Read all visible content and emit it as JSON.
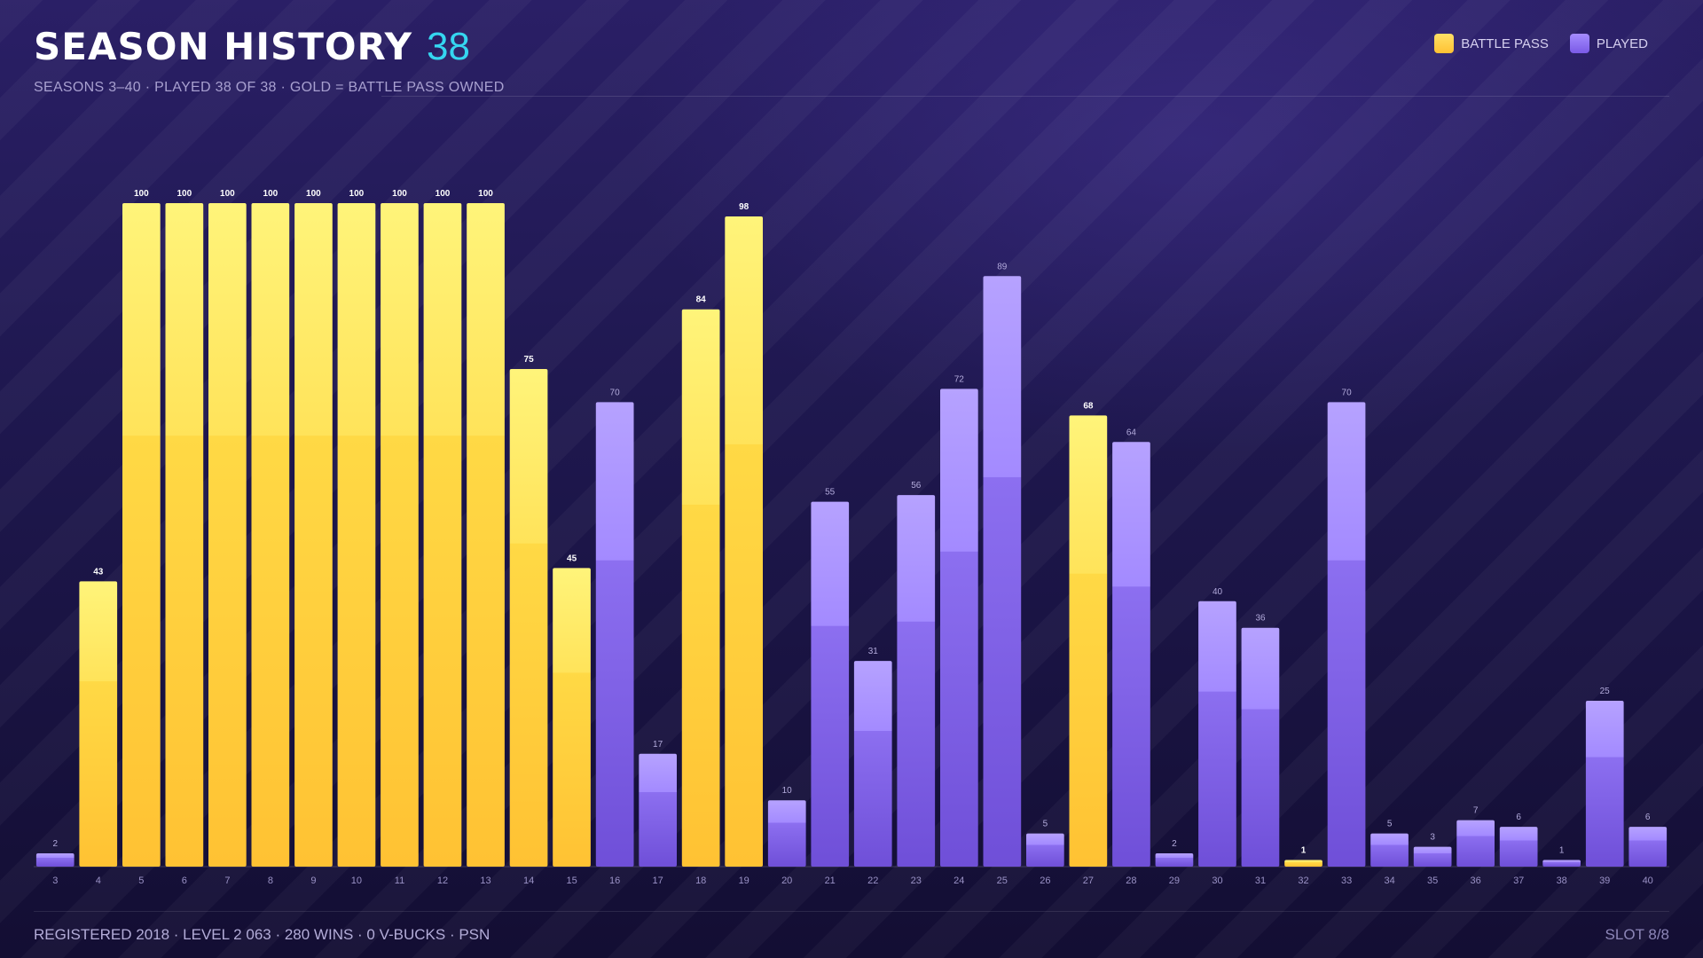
{
  "header": {
    "title": "SEASON HISTORY",
    "count": "38",
    "subtitle": "SEASONS 3–40 · PLAYED 38 OF 38 · GOLD = BATTLE PASS OWNED"
  },
  "legend": [
    {
      "label": "BATTLE PASS",
      "color": "#ffc93c"
    },
    {
      "label": "PLAYED",
      "color": "#8e6ff0"
    }
  ],
  "footer": {
    "left": "REGISTERED 2018 · LEVEL 2 063 · 280 WINS · 0 V-BUCKS · PSN",
    "right": "SLOT 8/8"
  },
  "colors": {
    "gold_top": "#fff47a",
    "gold_bottom": "#ffc233",
    "purple_top": "#b6a2ff",
    "purple_bottom": "#6f4fd8"
  },
  "chart_data": {
    "type": "bar",
    "title": "SEASON HISTORY",
    "categories": [
      "3",
      "4",
      "5",
      "6",
      "7",
      "8",
      "9",
      "10",
      "11",
      "12",
      "13",
      "14",
      "15",
      "16",
      "17",
      "18",
      "19",
      "20",
      "21",
      "22",
      "23",
      "24",
      "25",
      "26",
      "27",
      "28",
      "29",
      "30",
      "31",
      "32",
      "33",
      "34",
      "35",
      "36",
      "37",
      "38",
      "39",
      "40"
    ],
    "values": [
      2,
      43,
      100,
      100,
      100,
      100,
      100,
      100,
      100,
      100,
      100,
      75,
      45,
      70,
      17,
      84,
      98,
      10,
      55,
      31,
      56,
      72,
      89,
      5,
      68,
      64,
      2,
      40,
      36,
      1,
      70,
      5,
      3,
      7,
      6,
      1,
      25,
      6
    ],
    "battle_pass": [
      false,
      true,
      true,
      true,
      true,
      true,
      true,
      true,
      true,
      true,
      true,
      true,
      true,
      false,
      false,
      true,
      true,
      false,
      false,
      false,
      false,
      false,
      false,
      false,
      true,
      false,
      false,
      false,
      false,
      true,
      false,
      false,
      false,
      false,
      false,
      false,
      false,
      false
    ],
    "series": [
      {
        "name": "BATTLE PASS",
        "color": "#ffc93c"
      },
      {
        "name": "PLAYED",
        "color": "#8e6ff0"
      }
    ],
    "ylim": [
      0,
      100
    ],
    "grid": false,
    "legend_position": "top-right"
  }
}
